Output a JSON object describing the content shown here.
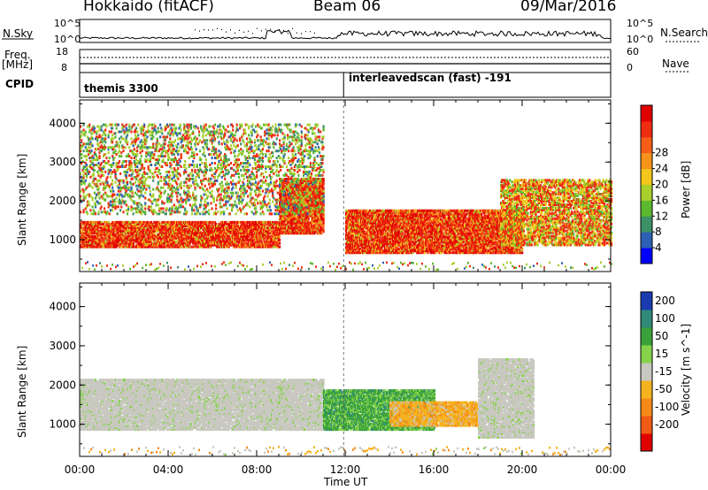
{
  "header": {
    "station": "Hokkaido (fitACF)",
    "beam": "Beam 06",
    "date": "09/Mar/2016"
  },
  "top_panels": {
    "nsky_label": "N.Sky",
    "nsky_ticks": [
      "10^5",
      "10^0"
    ],
    "nsearch_label": "N.Search",
    "nsearch_ticks": [
      "10^5",
      "10^0"
    ],
    "freq_label": "Freq.",
    "freq_unit": "[MHz]",
    "freq_ticks": [
      "18",
      "8"
    ],
    "nave_label": "Nave",
    "nave_ticks": [
      "60",
      "0"
    ],
    "cpid_label": "CPID",
    "cpid_segments": [
      {
        "label": "themis 3300",
        "start": "00:00",
        "end": "11:56"
      },
      {
        "label": "interleavedscan (fast) -191",
        "start": "11:56",
        "end": "24:00"
      }
    ]
  },
  "chart_data": [
    {
      "type": "heatmap",
      "title": "",
      "xlabel": "Time UT",
      "ylabel": "Slant Range [km]",
      "x_ticks": [
        "00:00",
        "04:00",
        "08:00",
        "12:00",
        "16:00",
        "20:00",
        "00:00"
      ],
      "x_range_hours": [
        0,
        24
      ],
      "y_ticks": [
        1000,
        2000,
        3000,
        4000
      ],
      "y_range_km": [
        180,
        4600
      ],
      "colorbar_label": "Power [dB]",
      "colorbar_ticks": [
        4,
        8,
        12,
        16,
        20,
        24,
        28
      ],
      "colorbar_colors": [
        "#0000ff",
        "#2d5fb4",
        "#3d9168",
        "#5cb82e",
        "#a9cf2c",
        "#f2c61a",
        "#f7921b",
        "#f65e18",
        "#ee2d11",
        "#e00000"
      ],
      "scatter_regions_hours_km": [
        {
          "t0": 0.0,
          "t1": 9.0,
          "r0": 850,
          "r1": 1500,
          "level": "high"
        },
        {
          "t0": 9.0,
          "t1": 11.0,
          "r0": 1200,
          "r1": 2600,
          "level": "high"
        },
        {
          "t0": 12.0,
          "t1": 20.0,
          "r0": 700,
          "r1": 1800,
          "level": "high"
        },
        {
          "t0": 19.0,
          "t1": 24.0,
          "r0": 900,
          "r1": 2600,
          "level": "mixed"
        },
        {
          "t0": 0.0,
          "t1": 11.0,
          "r0": 1700,
          "r1": 4000,
          "level": "sparse"
        }
      ]
    },
    {
      "type": "heatmap",
      "title": "",
      "xlabel": "Time UT",
      "ylabel": "Slant Range [km]",
      "x_ticks": [
        "00:00",
        "04:00",
        "08:00",
        "12:00",
        "16:00",
        "20:00",
        "00:00"
      ],
      "x_range_hours": [
        0,
        24
      ],
      "y_ticks": [
        1000,
        2000,
        3000,
        4000
      ],
      "y_range_km": [
        180,
        4600
      ],
      "colorbar_label": "Velocity [m s^-1]",
      "colorbar_ticks": [
        200,
        100,
        50,
        15,
        -15,
        -50,
        -100,
        -200
      ],
      "colorbar_colors": [
        "#1a3bb0",
        "#2f8a78",
        "#3aa23a",
        "#86d24a",
        "#c8c8c0",
        "#f5b21f",
        "#f58a18",
        "#f05a14",
        "#e00000"
      ],
      "scatter_regions_hours_km": [
        {
          "t0": 0.0,
          "t1": 11.0,
          "r0": 900,
          "r1": 2200,
          "level": "ground"
        },
        {
          "t0": 11.0,
          "t1": 16.0,
          "r0": 900,
          "r1": 1900,
          "level": "positive"
        },
        {
          "t0": 14.0,
          "t1": 18.0,
          "r0": 1000,
          "r1": 1600,
          "level": "negative"
        },
        {
          "t0": 18.0,
          "t1": 20.5,
          "r0": 700,
          "r1": 2700,
          "level": "ground"
        }
      ]
    }
  ]
}
